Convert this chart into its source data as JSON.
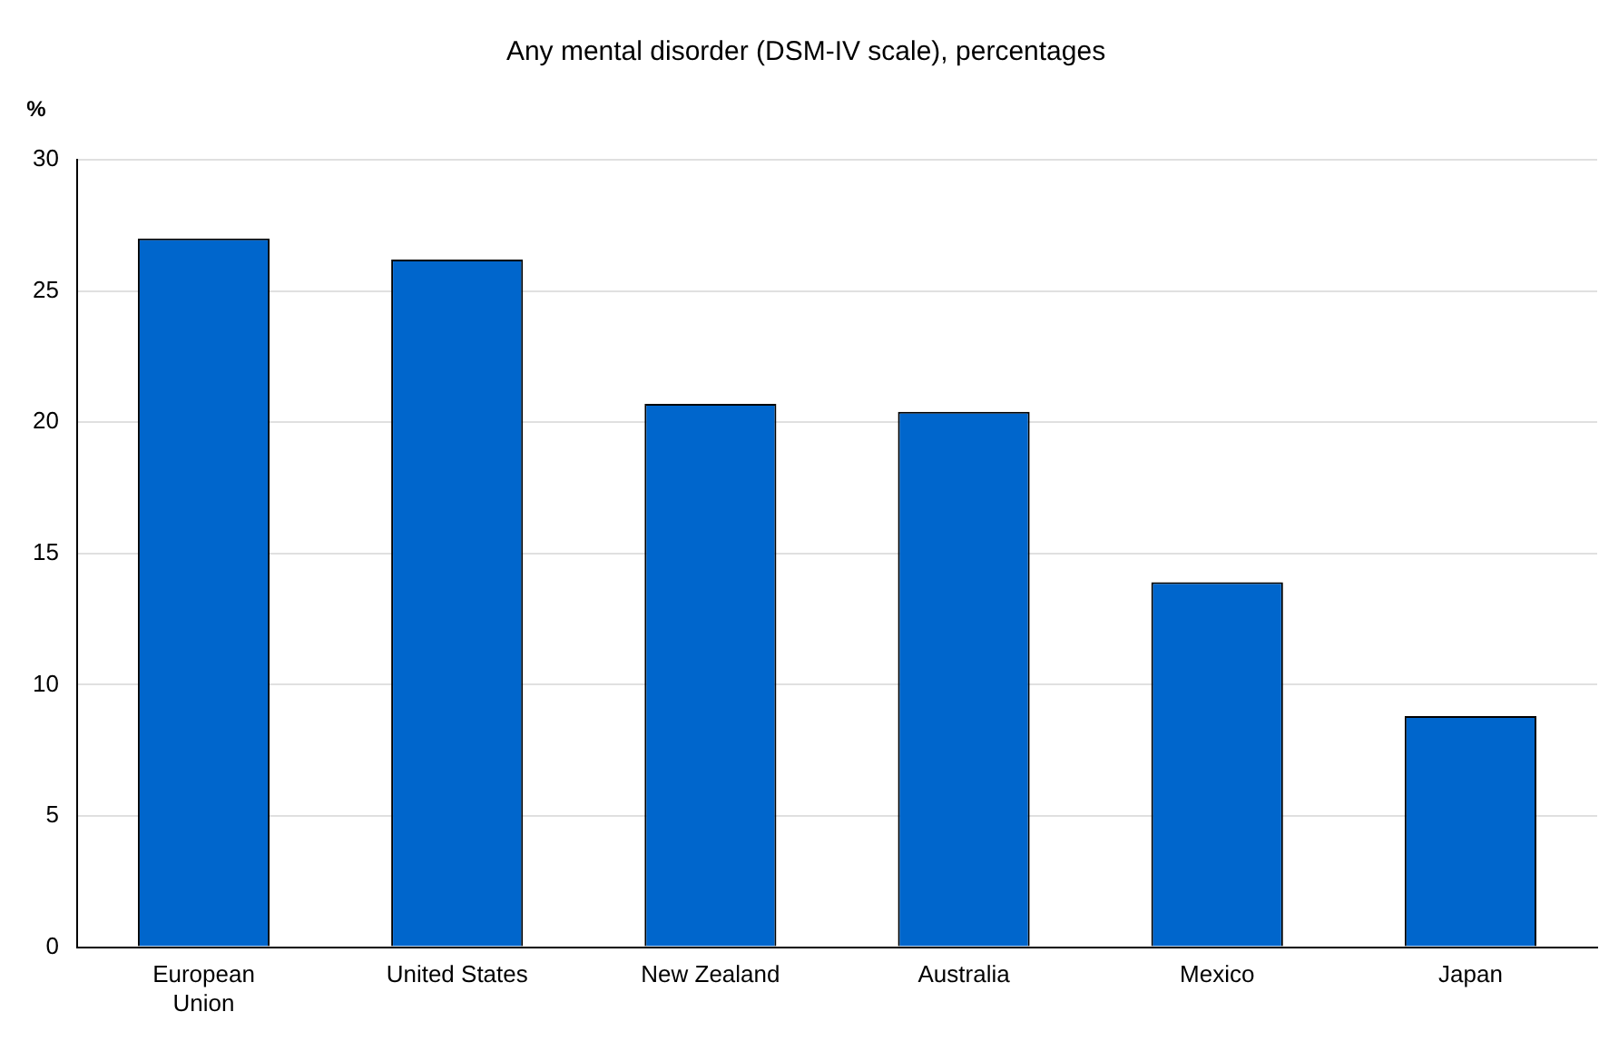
{
  "chart_data": {
    "type": "bar",
    "title": "Any mental disorder (DSM-IV scale), percentages",
    "ylabel": "%",
    "categories": [
      "European Union",
      "United States",
      "New Zealand",
      "Australia",
      "Mexico",
      "Japan"
    ],
    "values": [
      27.0,
      26.2,
      20.7,
      20.4,
      13.9,
      8.8
    ],
    "color": "#0066cc",
    "ylim": [
      0,
      30
    ],
    "yticks": [
      0,
      5,
      10,
      15,
      20,
      25,
      30
    ],
    "grid": "y",
    "legend": false
  }
}
